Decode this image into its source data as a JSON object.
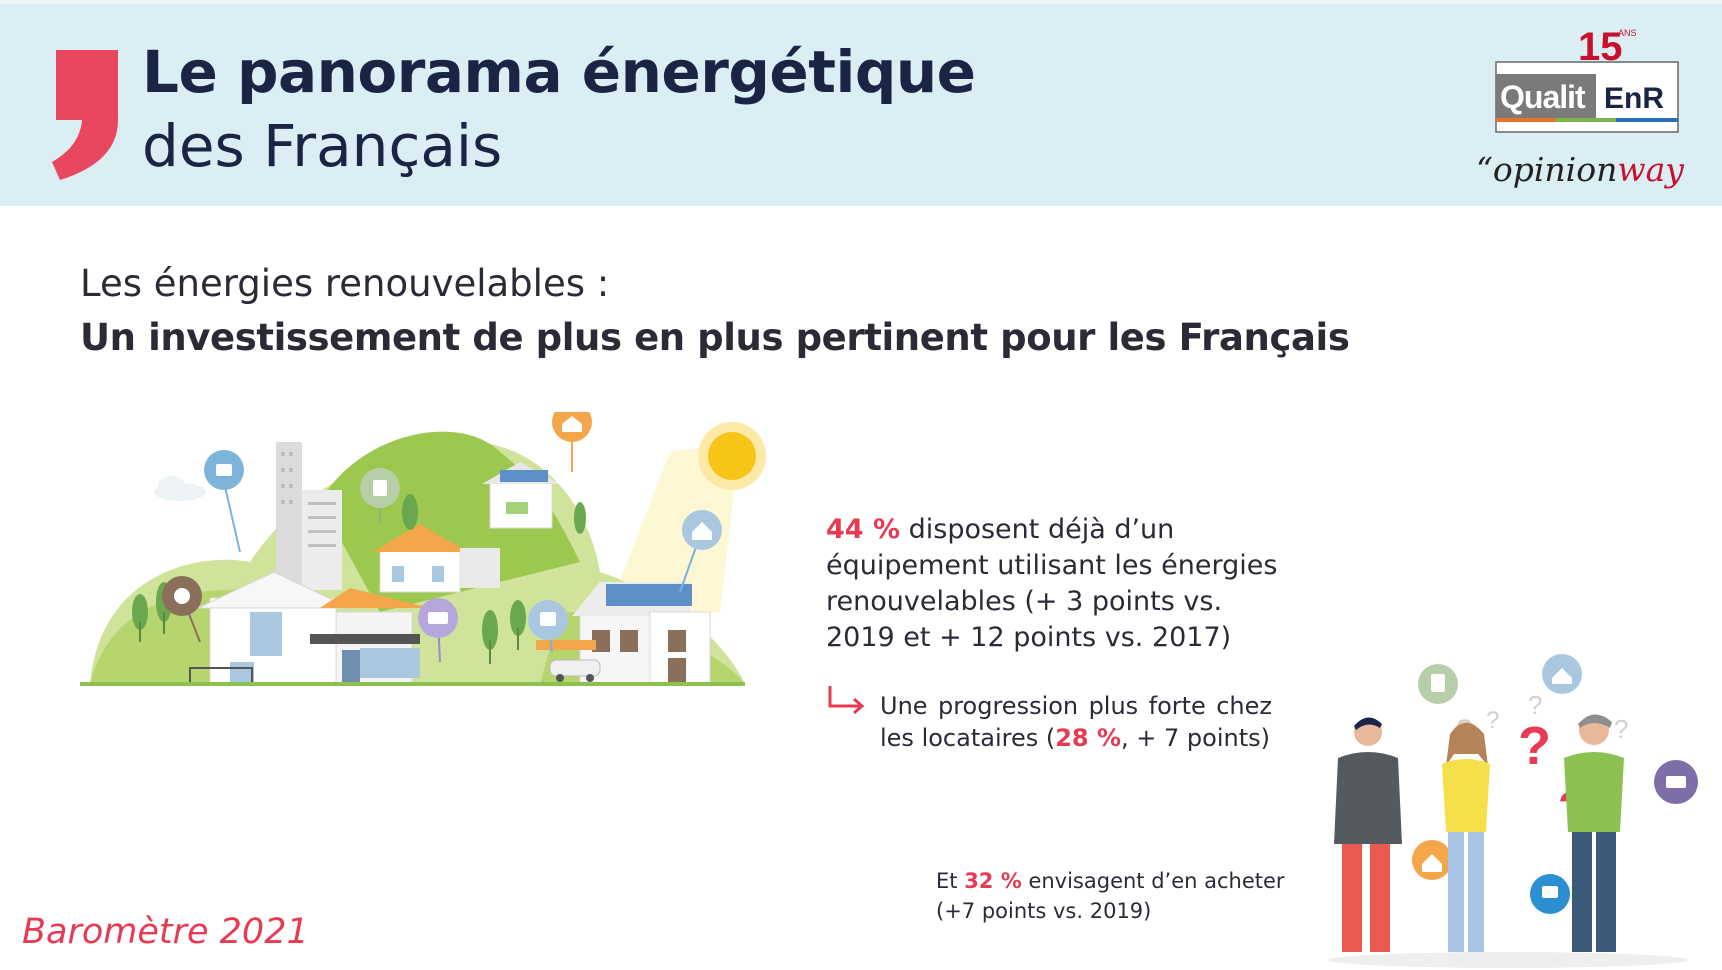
{
  "header": {
    "title_bold": "Le panorama énergétique",
    "title_light": "des Français",
    "logos": {
      "qualitenr_badge": "15",
      "qualitenr_badge_small": "ANS",
      "qualitenr_left": "Qualit",
      "qualitenr_right": "EnR",
      "opinionway_prefix": "“opinion",
      "opinionway_suffix": "way"
    }
  },
  "section": {
    "subtitle_line1": "Les énergies renouvelables :",
    "subtitle_line2": "Un investissement de plus en plus pertinent pour les Français"
  },
  "stats": {
    "main_value": "44 %",
    "main_text": " disposent déjà d’un équipement utilisant les énergies renouvelables (+ 3 points vs. 2019 et + 12 points vs. 2017)",
    "sub_prefix": "Une progression plus forte chez les locataires (",
    "sub_value": "28 %",
    "sub_suffix": ", + 7 points)",
    "buy_prefix": "Et ",
    "buy_value": "32 %",
    "buy_suffix": " envisagent d’en acheter",
    "buy_line2": "(+7 points vs. 2019)"
  },
  "footer": {
    "barometre": "Baromètre 2021"
  },
  "colors": {
    "accent_red": "#e63b52",
    "header_bg": "#dbeef4",
    "navy": "#1c2446",
    "green": "#8cc152"
  },
  "icons": {
    "illustration": "renewable-energy-village-illustration",
    "people": "questioning-people-illustration"
  }
}
